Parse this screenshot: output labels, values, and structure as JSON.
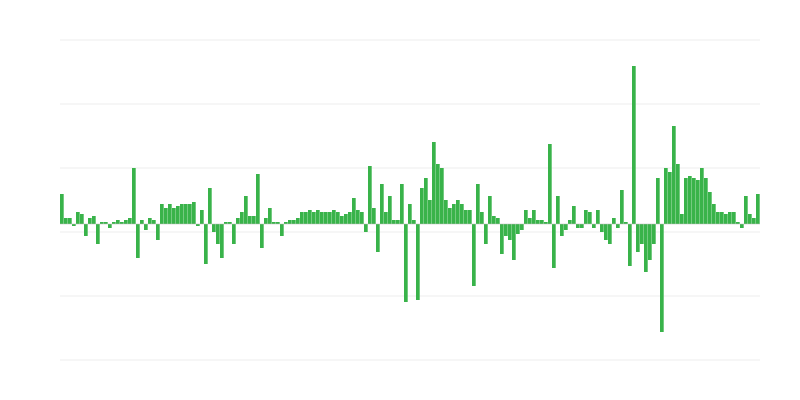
{
  "chart_data": {
    "type": "bar",
    "title": "",
    "xlabel": "",
    "ylabel": "",
    "ylim": [
      -68,
      92
    ],
    "gridlines": [
      92,
      60,
      28,
      -4,
      -36,
      -68
    ],
    "grid": true,
    "legend": "none",
    "colors": {
      "bar": "#39b34a",
      "grid": "#eeeeee",
      "baseline": "#bbbbbb"
    },
    "values": [
      15,
      3,
      3,
      -1,
      6,
      5,
      -6,
      3,
      4,
      -10,
      1,
      1,
      -2,
      1,
      2,
      1,
      2,
      3,
      28,
      -17,
      2,
      -3,
      3,
      2,
      -8,
      10,
      8,
      10,
      8,
      9,
      10,
      10,
      10,
      11,
      -1,
      7,
      -20,
      18,
      -4,
      -10,
      -17,
      1,
      1,
      -10,
      3,
      6,
      14,
      4,
      4,
      25,
      -12,
      3,
      8,
      1,
      1,
      -6,
      1,
      2,
      2,
      3,
      6,
      6,
      7,
      6,
      7,
      6,
      6,
      6,
      7,
      6,
      4,
      5,
      6,
      13,
      7,
      6,
      -4,
      29,
      8,
      -14,
      20,
      6,
      14,
      2,
      2,
      20,
      -39,
      10,
      2,
      -38,
      18,
      23,
      12,
      41,
      30,
      28,
      12,
      8,
      10,
      12,
      10,
      7,
      7,
      -31,
      20,
      6,
      -10,
      14,
      4,
      3,
      -15,
      -6,
      -8,
      -18,
      -5,
      -3,
      7,
      3,
      7,
      2,
      2,
      1,
      40,
      -22,
      14,
      -6,
      -3,
      2,
      9,
      -2,
      -2,
      7,
      6,
      -2,
      7,
      -4,
      -8,
      -10,
      3,
      -2,
      17,
      1,
      -21,
      79,
      -14,
      -10,
      -24,
      -18,
      -10,
      23,
      -54,
      28,
      26,
      49,
      30,
      5,
      23,
      24,
      23,
      22,
      28,
      23,
      16,
      10,
      6,
      6,
      5,
      6,
      6,
      1,
      -2,
      14,
      5,
      3,
      15
    ]
  }
}
